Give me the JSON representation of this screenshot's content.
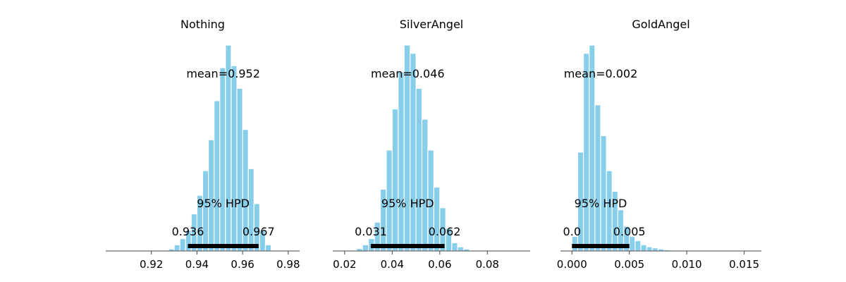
{
  "colors": {
    "bar": "#87ceeb",
    "bar_edge": "#ffffff",
    "axis": "#444444",
    "hpd": "#000000"
  },
  "chart_data": [
    {
      "type": "bar",
      "title": "Nothing",
      "xlim": [
        0.9,
        0.985
      ],
      "xticks": [
        "0.92",
        "0.94",
        "0.96",
        "0.98"
      ],
      "xtick_values": [
        0.92,
        0.94,
        0.96,
        0.98
      ],
      "bin_width": 0.0025,
      "bin_centers": [
        0.92875,
        0.93125,
        0.93375,
        0.93625,
        0.93875,
        0.94125,
        0.94375,
        0.94625,
        0.94875,
        0.95125,
        0.95375,
        0.95625,
        0.95875,
        0.96125,
        0.96375,
        0.96625,
        0.96875,
        0.97125
      ],
      "frequencies": [
        0.01,
        0.03,
        0.06,
        0.1,
        0.18,
        0.27,
        0.39,
        0.54,
        0.73,
        0.89,
        1.0,
        0.9,
        0.79,
        0.59,
        0.4,
        0.23,
        0.1,
        0.03
      ],
      "mean_label": "mean=0.952",
      "hpd_label": "95% HPD",
      "hpd_interval": [
        0.936,
        0.967
      ],
      "hpd_low_label": "0.936",
      "hpd_high_label": "0.967"
    },
    {
      "type": "bar",
      "title": "SilverAngel",
      "xlim": [
        0.015,
        0.098
      ],
      "xticks": [
        "0.02",
        "0.04",
        "0.06",
        "0.08"
      ],
      "xtick_values": [
        0.02,
        0.04,
        0.06,
        0.08
      ],
      "bin_width": 0.0025,
      "bin_centers": [
        0.02375,
        0.02625,
        0.02875,
        0.03125,
        0.03375,
        0.03625,
        0.03875,
        0.04125,
        0.04375,
        0.04625,
        0.04875,
        0.05125,
        0.05375,
        0.05625,
        0.05875,
        0.06125,
        0.06375,
        0.06625,
        0.06875,
        0.07125
      ],
      "frequencies": [
        0.004,
        0.012,
        0.03,
        0.06,
        0.14,
        0.3,
        0.49,
        0.69,
        0.87,
        1.0,
        0.96,
        0.79,
        0.64,
        0.49,
        0.31,
        0.21,
        0.11,
        0.04,
        0.02,
        0.01
      ],
      "mean_label": "mean=0.046",
      "hpd_label": "95% HPD",
      "hpd_interval": [
        0.031,
        0.062
      ],
      "hpd_low_label": "0.031",
      "hpd_high_label": "0.062"
    },
    {
      "type": "bar",
      "title": "GoldAngel",
      "xlim": [
        -0.001,
        0.0165
      ],
      "xticks": [
        "0.000",
        "0.005",
        "0.010",
        "0.015"
      ],
      "xtick_values": [
        0.0,
        0.005,
        0.01,
        0.015
      ],
      "bin_width": 0.0005,
      "bin_centers": [
        0.00025,
        0.00075,
        0.00125,
        0.00175,
        0.00225,
        0.00275,
        0.00325,
        0.00375,
        0.00425,
        0.00475,
        0.00525,
        0.00575,
        0.00625,
        0.00675,
        0.00725,
        0.00775,
        0.00825,
        0.00875,
        0.00925
      ],
      "frequencies": [
        0.07,
        0.48,
        0.96,
        1.0,
        0.71,
        0.56,
        0.39,
        0.29,
        0.2,
        0.12,
        0.07,
        0.05,
        0.03,
        0.02,
        0.015,
        0.01,
        0.006,
        0.004,
        0.002
      ],
      "mean_label": "mean=0.002",
      "hpd_label": "95% HPD",
      "hpd_interval": [
        0.0,
        0.005
      ],
      "hpd_low_label": "0.0",
      "hpd_high_label": "0.005"
    }
  ]
}
